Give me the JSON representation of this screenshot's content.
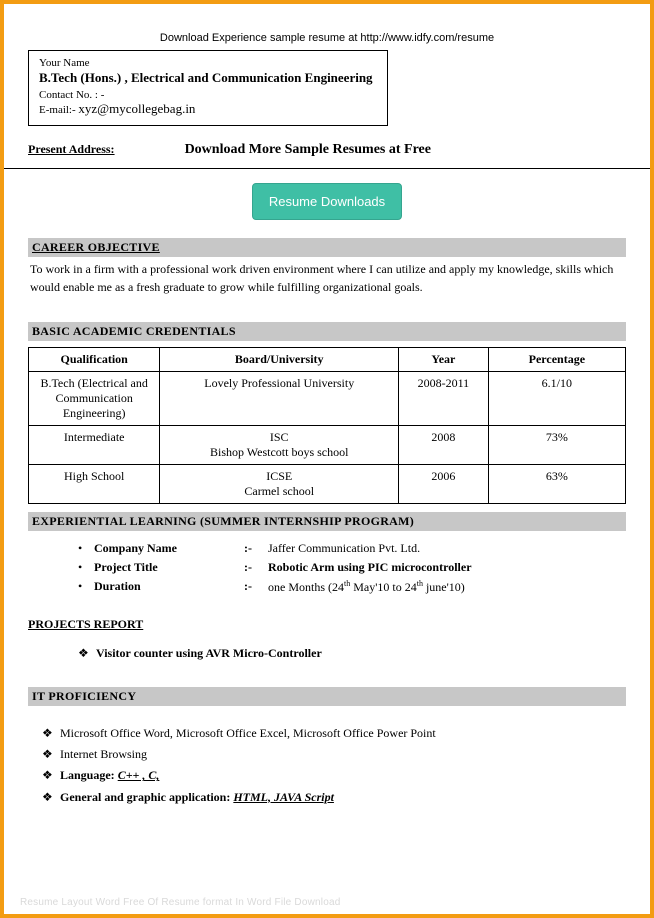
{
  "colors": {
    "page_border": "#f39c12",
    "section_bg": "#c7c7c7",
    "button_bg": "#3fbfa5",
    "button_border": "#35a58f",
    "button_text": "#ffffff",
    "text": "#000000",
    "footer_caption": "#d9d9d9"
  },
  "top_link": "Download Experience sample resume at http://www.idfy.com/resume",
  "name_box": {
    "your_name_label": "Your Name",
    "degree_line": "B.Tech (Hons.) , Electrical and Communication Engineering",
    "contact_label": "Contact No. : -",
    "email_label": "E-mail:-",
    "email": "xyz@mycollegebag.in"
  },
  "present_address_label": "Present Address:",
  "download_more_label": "Download More Sample Resumes at Free",
  "resume_button_label": "Resume Downloads",
  "sections": {
    "career_objective": {
      "title": "CAREER OBJECTIVE",
      "text": "To work in a firm with a professional work driven environment where I can utilize and apply my knowledge, skills which would enable me as a fresh graduate to grow while fulfilling organizational goals."
    },
    "credentials": {
      "title": "BASIC ACADEMIC CREDENTIALS",
      "columns": [
        "Qualification",
        "Board/University",
        "Year",
        "Percentage"
      ],
      "rows": [
        {
          "qualification": "B.Tech (Electrical and Communication Engineering)",
          "board": "Lovely Professional University",
          "year": "2008-2011",
          "percentage": "6.1/10"
        },
        {
          "qualification": "Intermediate",
          "board": "ISC\nBishop Westcott boys school",
          "year": "2008",
          "percentage": "73%"
        },
        {
          "qualification": "High School",
          "board": "ICSE\nCarmel school",
          "year": "2006",
          "percentage": "63%"
        }
      ]
    },
    "experiential": {
      "title": "EXPERIENTIAL LEARNING (SUMMER INTERNSHIP PROGRAM)",
      "items": [
        {
          "label": "Company Name",
          "value": "Jaffer Communication Pvt. Ltd.",
          "bold": false
        },
        {
          "label": "Project Title",
          "value": "Robotic Arm using PIC microcontroller",
          "bold": true
        },
        {
          "label": "Duration",
          "value_html": "one Months (24<sup>th</sup> May'10 to 24<sup>th</sup>  june'10)",
          "bold": false
        }
      ]
    },
    "projects": {
      "title": "PROJECTS REPORT",
      "items": [
        "Visitor counter using AVR Micro-Controller"
      ]
    },
    "it": {
      "title": "IT PROFICIENCY",
      "items": [
        {
          "prefix": "",
          "text": "Microsoft Office Word, Microsoft Office Excel, Microsoft Office Power Point"
        },
        {
          "prefix": "",
          "text": "Internet Browsing"
        },
        {
          "prefix": "Language: ",
          "text_ui": "C++ , C,"
        },
        {
          "prefix": "General and graphic application: ",
          "text_ui": "HTML, JAVA Script"
        }
      ]
    }
  },
  "footer_caption": "Resume Layout Word Free Of Resume format In Word File Download"
}
